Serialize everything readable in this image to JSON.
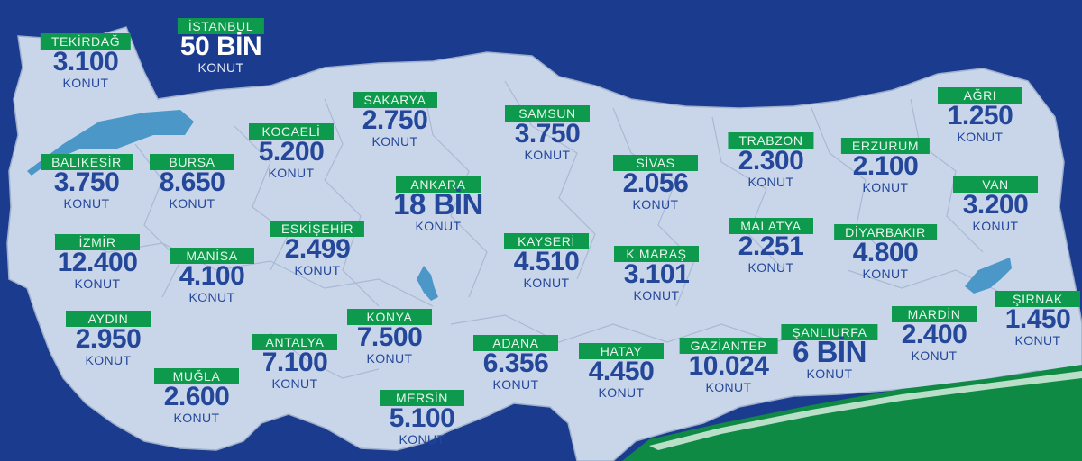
{
  "map": {
    "cities": [
      {
        "key": "istanbul",
        "name": "İSTANBUL",
        "value": "50 BİN",
        "unit": "KONUT"
      },
      {
        "key": "tekirdag",
        "name": "TEKİRDAĞ",
        "value": "3.100",
        "unit": "KONUT"
      },
      {
        "key": "kocaeli",
        "name": "KOCAELİ",
        "value": "5.200",
        "unit": "KONUT"
      },
      {
        "key": "sakarya",
        "name": "SAKARYA",
        "value": "2.750",
        "unit": "KONUT"
      },
      {
        "key": "samsun",
        "name": "SAMSUN",
        "value": "3.750",
        "unit": "KONUT"
      },
      {
        "key": "trabzon",
        "name": "TRABZON",
        "value": "2.300",
        "unit": "KONUT"
      },
      {
        "key": "erzurum",
        "name": "ERZURUM",
        "value": "2.100",
        "unit": "KONUT"
      },
      {
        "key": "agri",
        "name": "AĞRI",
        "value": "1.250",
        "unit": "KONUT"
      },
      {
        "key": "balikesir",
        "name": "BALIKESİR",
        "value": "3.750",
        "unit": "KONUT"
      },
      {
        "key": "bursa",
        "name": "BURSA",
        "value": "8.650",
        "unit": "KONUT"
      },
      {
        "key": "ankara",
        "name": "ANKARA",
        "value": "18 BİN",
        "unit": "KONUT"
      },
      {
        "key": "sivas",
        "name": "SİVAS",
        "value": "2.056",
        "unit": "KONUT"
      },
      {
        "key": "van",
        "name": "VAN",
        "value": "3.200",
        "unit": "KONUT"
      },
      {
        "key": "izmir",
        "name": "İZMİR",
        "value": "12.400",
        "unit": "KONUT"
      },
      {
        "key": "manisa",
        "name": "MANİSA",
        "value": "4.100",
        "unit": "KONUT"
      },
      {
        "key": "eskisehir",
        "name": "ESKİŞEHİR",
        "value": "2.499",
        "unit": "KONUT"
      },
      {
        "key": "kayseri",
        "name": "KAYSERİ",
        "value": "4.510",
        "unit": "KONUT"
      },
      {
        "key": "kmaras",
        "name": "K.MARAŞ",
        "value": "3.101",
        "unit": "KONUT"
      },
      {
        "key": "malatya",
        "name": "MALATYA",
        "value": "2.251",
        "unit": "KONUT"
      },
      {
        "key": "diyarbakir",
        "name": "DİYARBAKIR",
        "value": "4.800",
        "unit": "KONUT"
      },
      {
        "key": "aydin",
        "name": "AYDIN",
        "value": "2.950",
        "unit": "KONUT"
      },
      {
        "key": "mugla",
        "name": "MUĞLA",
        "value": "2.600",
        "unit": "KONUT"
      },
      {
        "key": "antalya",
        "name": "ANTALYA",
        "value": "7.100",
        "unit": "KONUT"
      },
      {
        "key": "konya",
        "name": "KONYA",
        "value": "7.500",
        "unit": "KONUT"
      },
      {
        "key": "mersin",
        "name": "MERSİN",
        "value": "5.100",
        "unit": "KONUT"
      },
      {
        "key": "adana",
        "name": "ADANA",
        "value": "6.356",
        "unit": "KONUT"
      },
      {
        "key": "hatay",
        "name": "HATAY",
        "value": "4.450",
        "unit": "KONUT"
      },
      {
        "key": "gaziantep",
        "name": "GAZİANTEP",
        "value": "10.024",
        "unit": "KONUT"
      },
      {
        "key": "sanliurfa",
        "name": "ŞANLIURFA",
        "value": "6 BİN",
        "unit": "KONUT"
      },
      {
        "key": "mardin",
        "name": "MARDİN",
        "value": "2.400",
        "unit": "KONUT"
      },
      {
        "key": "sirnak",
        "name": "ŞIRNAK",
        "value": "1.450",
        "unit": "KONUT"
      }
    ]
  },
  "colors": {
    "sea": "#1b3c8e",
    "land": "#c9d6ea",
    "lake": "#4a97c8",
    "label_bg": "#0d9a4c",
    "value_text": "#24479a",
    "highlight_text": "#ffffff"
  }
}
